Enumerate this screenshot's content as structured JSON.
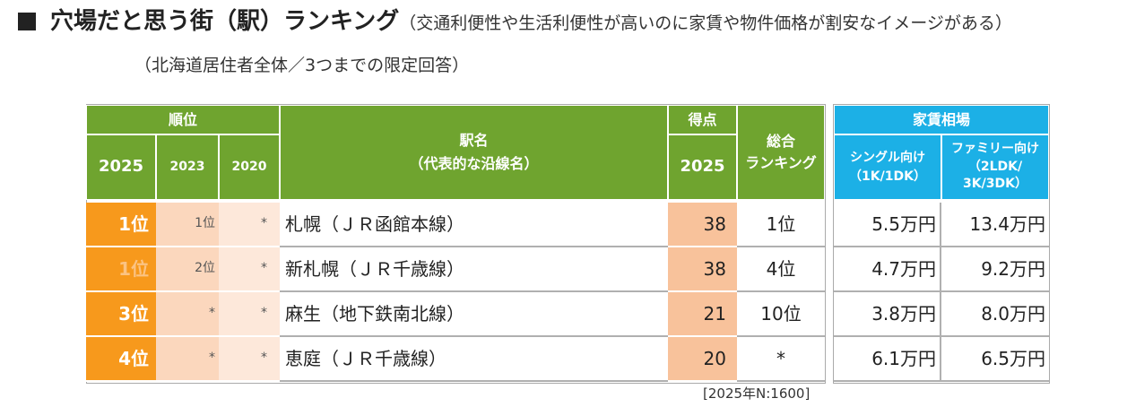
{
  "header": {
    "mark": "■",
    "title": "穴場だと思う街（駅）ランキング",
    "subtitle": "（交通利便性や生活利便性が高いのに家賃や物件価格が割安なイメージがある）",
    "note": "（北海道居住者全体／3つまでの限定回答）"
  },
  "table": {
    "columns": {
      "rank": "順位",
      "rank_2025": "2025",
      "rank_2023": "2023",
      "rank_2020": "2020",
      "station": "駅名",
      "station_sub": "（代表的な沿線名）",
      "score": "得点",
      "score_year": "2025",
      "overall": [
        "総合",
        "ランキング"
      ],
      "rent": "家賃相場",
      "single": [
        "シングル向け",
        "（1K/1DK）"
      ],
      "family": [
        "ファミリー向け",
        "（2LDK/",
        "3K/3DK）"
      ]
    },
    "rows": [
      {
        "rank_2025": "1位",
        "rank_2023": "1位",
        "rank_2020": "*",
        "station": "札幌（ＪＲ函館本線）",
        "score": 38,
        "overall": "1位",
        "single": "5.5万円",
        "family": "13.4万円"
      },
      {
        "rank_2025": "1位",
        "rank_2023": "2位",
        "rank_2020": "*",
        "station": "新札幌（ＪＲ千歳線）",
        "score": 38,
        "overall": "4位",
        "single": "4.7万円",
        "family": "9.2万円"
      },
      {
        "rank_2025": "3位",
        "rank_2023": "*",
        "rank_2020": "*",
        "station": "麻生（地下鉄南北線）",
        "score": 21,
        "overall": "10位",
        "single": "3.8万円",
        "family": "8.0万円"
      },
      {
        "rank_2025": "4位",
        "rank_2023": "*",
        "rank_2020": "*",
        "station": "恵庭（ＪＲ千歳線）",
        "score": 20,
        "overall": "*",
        "single": "6.1万円",
        "family": "6.5万円"
      }
    ],
    "footnote": "[2025年N:1600]"
  }
}
